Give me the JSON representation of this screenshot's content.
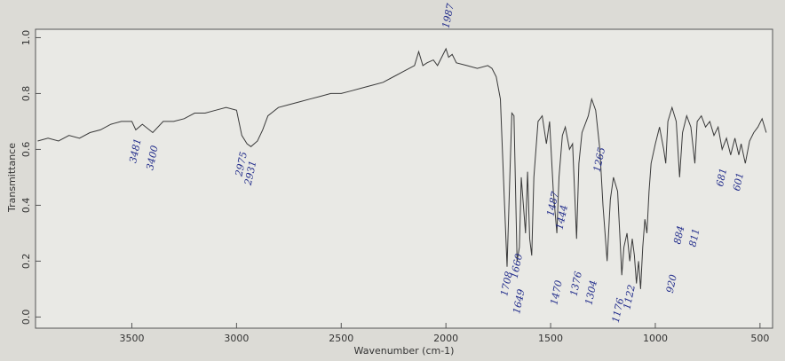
{
  "chart_data": {
    "type": "line",
    "x_label": "Wavenumber (cm-1)",
    "y_label": "Transmittance",
    "color": "#3a3a3a",
    "xlim": [
      3960,
      440
    ],
    "ylim": [
      -0.04,
      1.03
    ],
    "xticks": [
      3500,
      3000,
      2500,
      2000,
      1500,
      1000,
      500
    ],
    "yticks": [
      {
        "value": 0,
        "label": "0.0"
      },
      0.2,
      0.4,
      0.6,
      0.8,
      {
        "value": 1,
        "label": "1.0"
      }
    ],
    "x": [
      3950,
      3900,
      3850,
      3800,
      3750,
      3700,
      3650,
      3600,
      3550,
      3500,
      3481,
      3450,
      3400,
      3350,
      3300,
      3250,
      3200,
      3150,
      3100,
      3050,
      3000,
      2975,
      2950,
      2931,
      2900,
      2875,
      2850,
      2800,
      2750,
      2700,
      2650,
      2600,
      2550,
      2500,
      2450,
      2400,
      2350,
      2300,
      2250,
      2200,
      2150,
      2130,
      2110,
      2090,
      2060,
      2040,
      2000,
      1987,
      1970,
      1950,
      1900,
      1850,
      1800,
      1780,
      1760,
      1740,
      1720,
      1708,
      1695,
      1685,
      1675,
      1660,
      1649,
      1640,
      1630,
      1620,
      1610,
      1600,
      1590,
      1580,
      1560,
      1540,
      1520,
      1505,
      1487,
      1470,
      1460,
      1444,
      1430,
      1410,
      1395,
      1376,
      1365,
      1350,
      1320,
      1304,
      1285,
      1265,
      1250,
      1230,
      1215,
      1200,
      1180,
      1170,
      1160,
      1150,
      1135,
      1122,
      1110,
      1100,
      1090,
      1080,
      1070,
      1060,
      1050,
      1040,
      1030,
      1020,
      1000,
      980,
      960,
      950,
      940,
      920,
      900,
      884,
      870,
      850,
      830,
      811,
      800,
      780,
      760,
      740,
      720,
      700,
      681,
      660,
      640,
      620,
      601,
      590,
      570,
      550,
      530,
      510,
      490,
      470
    ],
    "y": [
      0.63,
      0.64,
      0.63,
      0.65,
      0.64,
      0.66,
      0.67,
      0.69,
      0.7,
      0.7,
      0.67,
      0.69,
      0.66,
      0.7,
      0.7,
      0.71,
      0.73,
      0.73,
      0.74,
      0.75,
      0.74,
      0.65,
      0.62,
      0.61,
      0.63,
      0.67,
      0.72,
      0.75,
      0.76,
      0.77,
      0.78,
      0.79,
      0.8,
      0.8,
      0.81,
      0.82,
      0.83,
      0.84,
      0.86,
      0.88,
      0.9,
      0.95,
      0.9,
      0.91,
      0.92,
      0.9,
      0.96,
      0.93,
      0.94,
      0.91,
      0.9,
      0.89,
      0.9,
      0.89,
      0.86,
      0.78,
      0.4,
      0.18,
      0.5,
      0.73,
      0.72,
      0.2,
      0.25,
      0.5,
      0.4,
      0.3,
      0.52,
      0.28,
      0.22,
      0.5,
      0.7,
      0.72,
      0.62,
      0.7,
      0.45,
      0.3,
      0.5,
      0.65,
      0.68,
      0.6,
      0.62,
      0.28,
      0.55,
      0.66,
      0.72,
      0.78,
      0.74,
      0.6,
      0.4,
      0.2,
      0.42,
      0.5,
      0.45,
      0.3,
      0.15,
      0.25,
      0.3,
      0.2,
      0.28,
      0.22,
      0.12,
      0.2,
      0.1,
      0.25,
      0.35,
      0.3,
      0.45,
      0.55,
      0.62,
      0.68,
      0.6,
      0.55,
      0.7,
      0.75,
      0.7,
      0.5,
      0.66,
      0.72,
      0.68,
      0.55,
      0.7,
      0.72,
      0.68,
      0.7,
      0.65,
      0.68,
      0.6,
      0.64,
      0.58,
      0.64,
      0.58,
      0.62,
      0.55,
      0.63,
      0.66,
      0.68,
      0.71,
      0.66
    ],
    "annotations": [
      "3481",
      "3400",
      "2975",
      "2931",
      "1987",
      "1708",
      "1660",
      "1649",
      "1470",
      "1487",
      "1444",
      "1376",
      "1265",
      "1304",
      "1122",
      "1176",
      "920",
      "884",
      "811",
      "681",
      "601"
    ]
  }
}
